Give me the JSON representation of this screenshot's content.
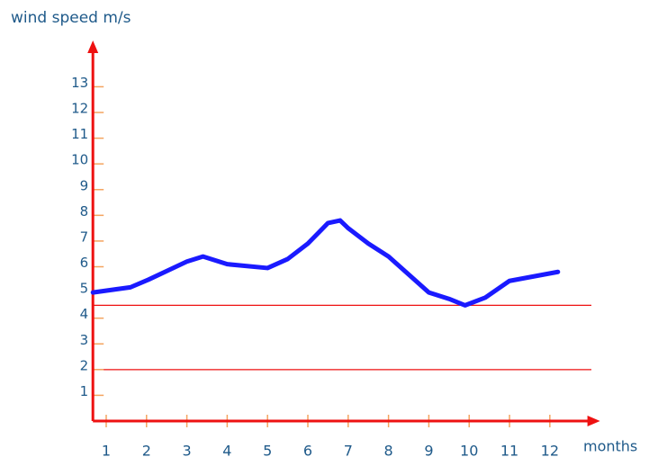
{
  "chart_data": {
    "type": "line",
    "y_label": "wind speed m/s",
    "x_label": "months",
    "x": [
      0.67,
      1.6,
      2.05,
      3,
      3.4,
      4,
      5,
      5.5,
      6,
      6.5,
      6.8,
      7,
      7.5,
      8,
      9,
      9.5,
      9.9,
      10.4,
      11,
      12.2
    ],
    "series": [
      {
        "color": "#1a1aff",
        "values": [
          5.0,
          5.2,
          5.5,
          6.2,
          6.4,
          6.1,
          5.95,
          6.3,
          6.9,
          7.7,
          7.8,
          7.5,
          6.9,
          6.4,
          5.0,
          4.75,
          4.5,
          4.8,
          5.45,
          5.8
        ]
      }
    ],
    "xlim": [
      0.67,
      13.2
    ],
    "xticks": [
      1,
      2,
      3,
      4,
      5,
      6,
      7,
      8,
      9,
      10,
      11,
      12
    ],
    "ylim": [
      0,
      14.8
    ],
    "yticks": [
      1,
      2,
      3,
      4,
      5,
      6,
      7,
      8,
      9,
      10,
      11,
      12,
      13
    ],
    "reference_lines": [
      4.5,
      2
    ],
    "reference_color": "#ee1111",
    "axis_color": "#ee1111",
    "tick_color": "#f4a460"
  }
}
